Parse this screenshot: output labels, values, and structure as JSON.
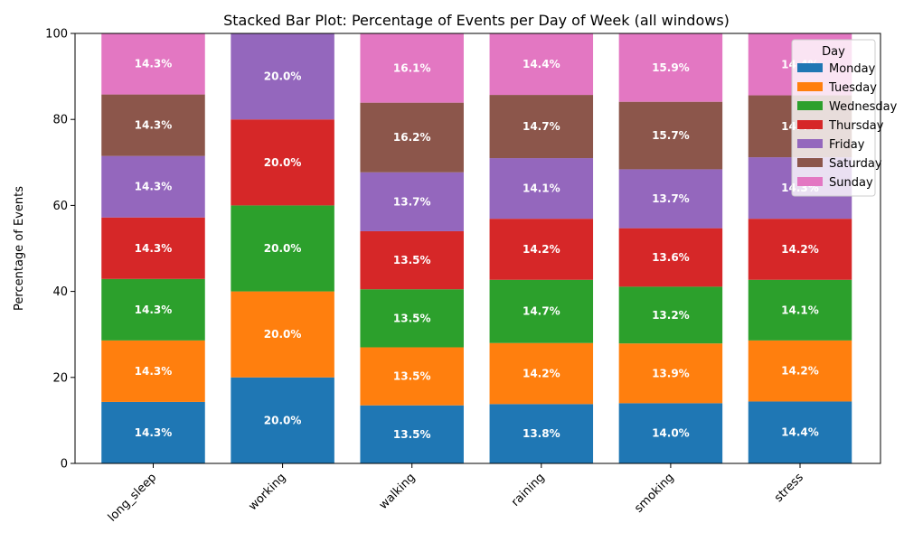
{
  "chart_data": {
    "type": "bar",
    "stacked": true,
    "title": "Stacked Bar Plot: Percentage of Events per Day of Week (all windows)",
    "xlabel": "",
    "ylabel": "Percentage of Events",
    "ylim": [
      0,
      100
    ],
    "yticks": [
      0,
      20,
      40,
      60,
      80,
      100
    ],
    "categories": [
      "long_sleep",
      "working",
      "walking",
      "raining",
      "smoking",
      "stress"
    ],
    "legend": {
      "title": "Day",
      "placement": "top-right"
    },
    "grid": false,
    "series": [
      {
        "name": "Monday",
        "color": "#1f77b4",
        "values": [
          14.3,
          20.0,
          13.5,
          13.8,
          14.0,
          14.4
        ]
      },
      {
        "name": "Tuesday",
        "color": "#ff7f0e",
        "values": [
          14.3,
          20.0,
          13.5,
          14.2,
          13.9,
          14.2
        ]
      },
      {
        "name": "Wednesday",
        "color": "#2ca02c",
        "values": [
          14.3,
          20.0,
          13.5,
          14.7,
          13.2,
          14.1
        ]
      },
      {
        "name": "Thursday",
        "color": "#d62728",
        "values": [
          14.3,
          20.0,
          13.5,
          14.2,
          13.6,
          14.2
        ]
      },
      {
        "name": "Friday",
        "color": "#9467bd",
        "values": [
          14.3,
          20.0,
          13.7,
          14.1,
          13.7,
          14.3
        ]
      },
      {
        "name": "Saturday",
        "color": "#8c564b",
        "values": [
          14.3,
          0.0,
          16.2,
          14.7,
          15.7,
          14.4
        ]
      },
      {
        "name": "Sunday",
        "color": "#e377c2",
        "values": [
          14.3,
          0.0,
          16.1,
          14.4,
          15.9,
          14.4
        ]
      }
    ],
    "data_labels": [
      [
        "14.3%",
        "20.0%",
        "13.5%",
        "13.8%",
        "14.0%",
        "14.4%"
      ],
      [
        "14.3%",
        "20.0%",
        "13.5%",
        "14.2%",
        "13.9%",
        "14.2%"
      ],
      [
        "14.3%",
        "20.0%",
        "13.5%",
        "14.7%",
        "13.2%",
        "14.1%"
      ],
      [
        "14.3%",
        "20.0%",
        "13.5%",
        "14.2%",
        "13.6%",
        "14.2%"
      ],
      [
        "14.3%",
        "20.0%",
        "13.7%",
        "14.1%",
        "13.7%",
        "14.3%"
      ],
      [
        "14.3%",
        "",
        "16.2%",
        "14.7%",
        "15.7%",
        "14.4%"
      ],
      [
        "14.3%",
        "",
        "16.1%",
        "14.4%",
        "15.9%",
        "14.4%"
      ]
    ]
  }
}
